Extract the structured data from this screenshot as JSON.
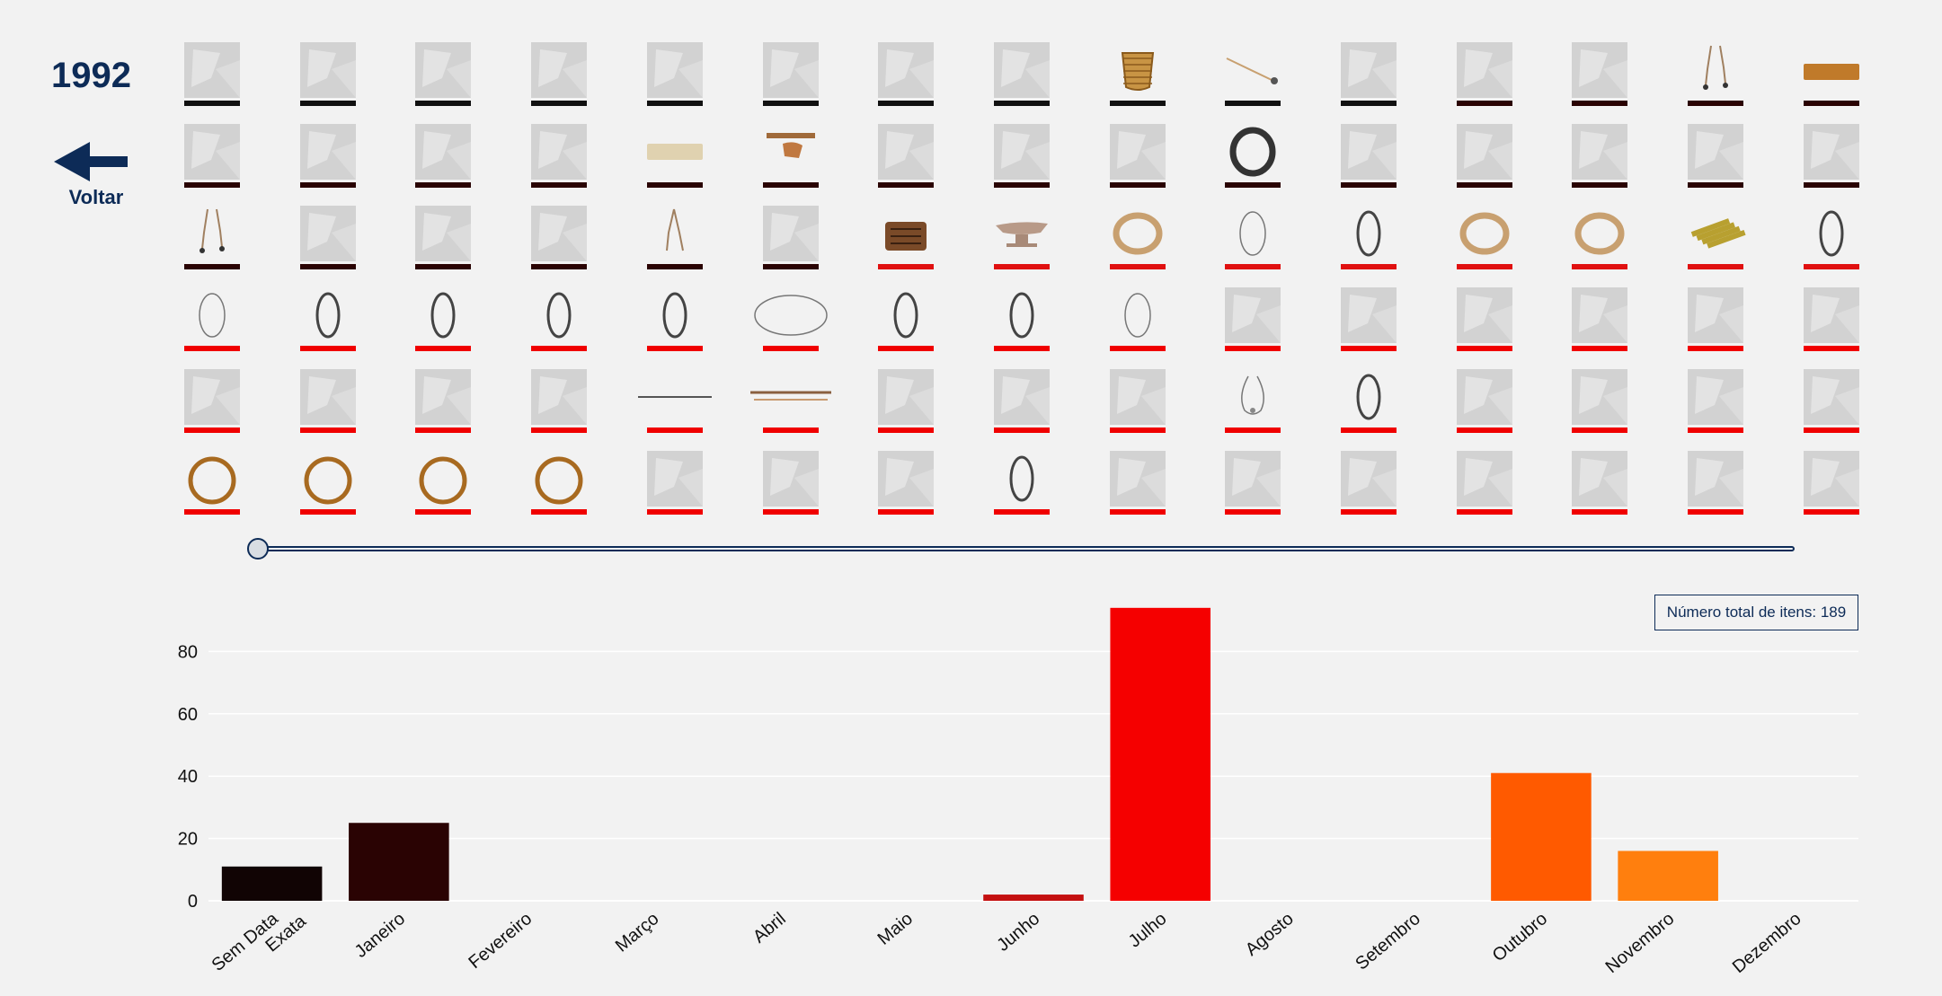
{
  "header": {
    "year": "1992",
    "back_label": "Voltar"
  },
  "total_label": "Número total de itens: 189",
  "colors": {
    "background": "#f2f2f2",
    "navy": "#0d2b57",
    "gridline": "#ffffff"
  },
  "gallery": {
    "columns": 15,
    "rows": [
      {
        "bar": "#111111",
        "items": [
          "placeholder",
          "placeholder",
          "placeholder",
          "placeholder",
          "placeholder",
          "placeholder",
          "placeholder",
          "placeholder",
          "basket",
          "pipe",
          "placeholder",
          "placeholder",
          "placeholder",
          "earrings",
          "band"
        ],
        "bars": [
          "#111111",
          "#111111",
          "#111111",
          "#111111",
          "#111111",
          "#111111",
          "#111111",
          "#111111",
          "#111111",
          "#111111",
          "#111111",
          "#2a0303",
          "#2a0303",
          "#2a0303",
          "#2a0303"
        ]
      },
      {
        "items": [
          "placeholder",
          "placeholder",
          "placeholder",
          "placeholder",
          "cloth",
          "bundle",
          "placeholder",
          "placeholder",
          "placeholder",
          "coil-dark",
          "placeholder",
          "placeholder",
          "placeholder",
          "placeholder",
          "placeholder"
        ],
        "bars": [
          "#2a0303",
          "#2a0303",
          "#2a0303",
          "#2a0303",
          "#2a0303",
          "#2a0303",
          "#2a0303",
          "#2a0303",
          "#2a0303",
          "#2a0303",
          "#2a0303",
          "#2a0303",
          "#2a0303",
          "#2a0303",
          "#2a0303"
        ]
      },
      {
        "items": [
          "earrings",
          "placeholder",
          "placeholder",
          "placeholder",
          "earring-single",
          "placeholder",
          "bag",
          "bowl",
          "ring-straw",
          "ring-thin",
          "ring-dark",
          "ring-straw",
          "ring-straw",
          "bundle-sticks",
          "ring-dark"
        ],
        "bars": [
          "#2a0303",
          "#2a0303",
          "#2a0303",
          "#2a0303",
          "#2a0303",
          "#2a0303",
          "#e01010",
          "#e01010",
          "#e01010",
          "#e01010",
          "#e01010",
          "#e01010",
          "#e01010",
          "#e01010",
          "#e01010"
        ]
      },
      {
        "items": [
          "ring-thin",
          "ring-dark",
          "ring-dark",
          "ring-dark",
          "ring-dark",
          "ring-wide",
          "ring-dark",
          "ring-dark",
          "ring-thin",
          "placeholder",
          "placeholder",
          "placeholder",
          "placeholder",
          "placeholder",
          "placeholder"
        ],
        "bars": [
          "#f00000",
          "#f00000",
          "#f00000",
          "#f00000",
          "#f00000",
          "#f00000",
          "#f00000",
          "#f00000",
          "#f00000",
          "#f00000",
          "#f00000",
          "#f00000",
          "#f00000",
          "#f00000",
          "#f00000"
        ]
      },
      {
        "items": [
          "placeholder",
          "placeholder",
          "placeholder",
          "placeholder",
          "stick",
          "stick-double",
          "placeholder",
          "placeholder",
          "placeholder",
          "necklace",
          "ring-dark",
          "placeholder",
          "placeholder",
          "placeholder",
          "placeholder"
        ],
        "bars": [
          "#f00000",
          "#f00000",
          "#f00000",
          "#f00000",
          "#f00000",
          "#f00000",
          "#f00000",
          "#f00000",
          "#f00000",
          "#f00000",
          "#f00000",
          "#f00000",
          "#f00000",
          "#f00000",
          "#f00000"
        ]
      },
      {
        "items": [
          "ring-gold",
          "ring-gold",
          "ring-gold",
          "ring-gold",
          "placeholder",
          "placeholder",
          "placeholder",
          "ring-dark",
          "placeholder",
          "placeholder",
          "placeholder",
          "placeholder",
          "placeholder",
          "placeholder",
          "placeholder"
        ],
        "bars": [
          "#f00000",
          "#f00000",
          "#f00000",
          "#f00000",
          "#f00000",
          "#f00000",
          "#f00000",
          "#f00000",
          "#f00000",
          "#f00000",
          "#f00000",
          "#f00000",
          "#f00000",
          "#f00000",
          "#f00000"
        ]
      }
    ]
  },
  "timeline": {
    "value": 0
  },
  "chart_data": {
    "type": "bar",
    "categories": [
      "Sem Data Exata",
      "Janeiro",
      "Fevereiro",
      "Março",
      "Abril",
      "Maio",
      "Junho",
      "Julho",
      "Agosto",
      "Setembro",
      "Outubro",
      "Novembro",
      "Dezembro"
    ],
    "tick_lines": [
      [
        "Sem Data",
        "Exata"
      ],
      [
        "Janeiro"
      ],
      [
        "Fevereiro"
      ],
      [
        "Março"
      ],
      [
        "Abril"
      ],
      [
        "Maio"
      ],
      [
        "Junho"
      ],
      [
        "Julho"
      ],
      [
        "Agosto"
      ],
      [
        "Setembro"
      ],
      [
        "Outubro"
      ],
      [
        "Novembro"
      ],
      [
        "Dezembro"
      ]
    ],
    "values": [
      11,
      25,
      0,
      0,
      0,
      0,
      2,
      94,
      0,
      0,
      41,
      16,
      0
    ],
    "bar_colors": [
      "#110404",
      "#2a0303",
      "#2a0303",
      "#2a0303",
      "#2a0303",
      "#2a0303",
      "#c41010",
      "#f50000",
      "#f50000",
      "#f50000",
      "#ff5a00",
      "#ff7f0e",
      "#ff7f0e"
    ],
    "yticks": [
      0,
      20,
      40,
      60,
      80
    ],
    "ylim": [
      0,
      100
    ],
    "grid": true,
    "title": "",
    "xlabel": "",
    "ylabel": ""
  }
}
